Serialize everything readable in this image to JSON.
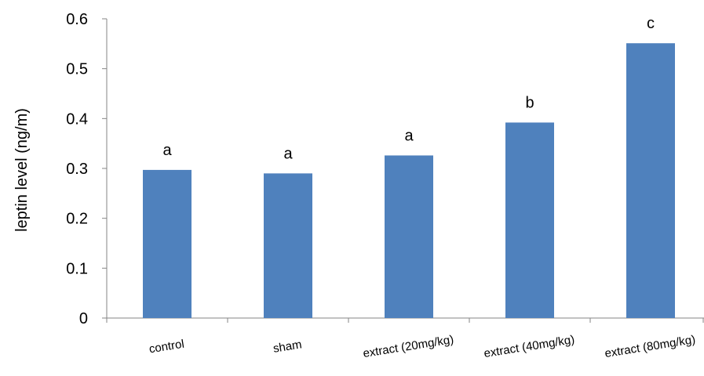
{
  "chart_data": {
    "type": "bar",
    "categories": [
      "control",
      "sham",
      "extract (20mg/kg)",
      "extract (40mg/kg)",
      "extract (80mg/kg)"
    ],
    "values": [
      0.297,
      0.29,
      0.326,
      0.392,
      0.551
    ],
    "data_labels": [
      "a",
      "a",
      "a",
      "b",
      "c"
    ],
    "ylabel": "leptin level (ng/m)",
    "xlabel": "",
    "ylim": [
      0,
      0.6
    ],
    "yticks": [
      "0",
      "0.1",
      "0.2",
      "0.3",
      "0.4",
      "0.5",
      "0.6"
    ],
    "bar_color": "#4F81BD",
    "grid": false,
    "legend": "none"
  }
}
